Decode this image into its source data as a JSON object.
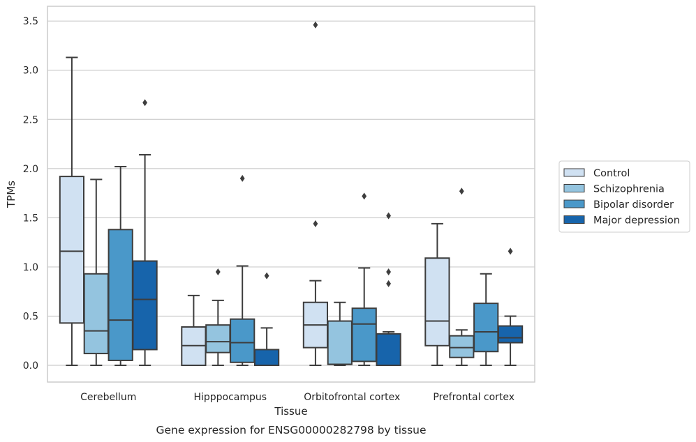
{
  "chart_data": {
    "type": "box",
    "caption": "Gene expression for ENSG00000282798 by tissue",
    "xlabel": "Tissue",
    "ylabel": "TPMs",
    "ylim": [
      -0.17,
      3.65
    ],
    "yticks": [
      "0.0",
      "0.5",
      "1.0",
      "1.5",
      "2.0",
      "2.5",
      "3.0",
      "3.5"
    ],
    "grid": true,
    "legend_position": "right",
    "categories": [
      "Cerebellum",
      "Hipppocampus",
      "Orbitofrontal cortex",
      "Prefrontal cortex"
    ],
    "series": [
      {
        "name": "Control",
        "color": "#d0e1f2",
        "boxes": [
          {
            "whisker_low": 0.0,
            "q1": 0.43,
            "median": 1.16,
            "q3": 1.92,
            "whisker_high": 3.13,
            "outliers": []
          },
          {
            "whisker_low": 0.0,
            "q1": 0.0,
            "median": 0.2,
            "q3": 0.39,
            "whisker_high": 0.71,
            "outliers": []
          },
          {
            "whisker_low": 0.0,
            "q1": 0.18,
            "median": 0.41,
            "q3": 0.64,
            "whisker_high": 0.86,
            "outliers": [
              1.44,
              3.46
            ]
          },
          {
            "whisker_low": 0.0,
            "q1": 0.2,
            "median": 0.45,
            "q3": 1.09,
            "whisker_high": 1.44,
            "outliers": []
          }
        ]
      },
      {
        "name": "Schizophrenia",
        "color": "#94c4df",
        "boxes": [
          {
            "whisker_low": 0.0,
            "q1": 0.12,
            "median": 0.35,
            "q3": 0.93,
            "whisker_high": 1.89,
            "outliers": []
          },
          {
            "whisker_low": 0.0,
            "q1": 0.13,
            "median": 0.24,
            "q3": 0.41,
            "whisker_high": 0.66,
            "outliers": [
              0.95
            ]
          },
          {
            "whisker_low": 0.0,
            "q1": 0.01,
            "median": 0.01,
            "q3": 0.45,
            "whisker_high": 0.64,
            "outliers": []
          },
          {
            "whisker_low": 0.0,
            "q1": 0.08,
            "median": 0.18,
            "q3": 0.3,
            "whisker_high": 0.36,
            "outliers": [
              1.77
            ]
          }
        ]
      },
      {
        "name": "Bipolar disorder",
        "color": "#4a98c9",
        "boxes": [
          {
            "whisker_low": 0.0,
            "q1": 0.05,
            "median": 0.46,
            "q3": 1.38,
            "whisker_high": 2.02,
            "outliers": []
          },
          {
            "whisker_low": 0.0,
            "q1": 0.03,
            "median": 0.23,
            "q3": 0.47,
            "whisker_high": 1.01,
            "outliers": [
              1.9
            ]
          },
          {
            "whisker_low": 0.0,
            "q1": 0.04,
            "median": 0.42,
            "q3": 0.58,
            "whisker_high": 0.99,
            "outliers": [
              1.72
            ]
          },
          {
            "whisker_low": 0.0,
            "q1": 0.14,
            "median": 0.34,
            "q3": 0.63,
            "whisker_high": 0.93,
            "outliers": []
          }
        ]
      },
      {
        "name": "Major depression",
        "color": "#1764ab",
        "boxes": [
          {
            "whisker_low": 0.0,
            "q1": 0.16,
            "median": 0.67,
            "q3": 1.06,
            "whisker_high": 2.14,
            "outliers": [
              2.67
            ]
          },
          {
            "whisker_low": 0.0,
            "q1": 0.0,
            "median": 0.0,
            "q3": 0.16,
            "whisker_high": 0.38,
            "outliers": [
              0.91
            ]
          },
          {
            "whisker_low": 0.0,
            "q1": 0.0,
            "median": 0.0,
            "q3": 0.32,
            "whisker_high": 0.34,
            "outliers": [
              0.83,
              0.95,
              1.52
            ]
          },
          {
            "whisker_low": 0.0,
            "q1": 0.23,
            "median": 0.28,
            "q3": 0.4,
            "whisker_high": 0.5,
            "outliers": [
              1.16
            ]
          }
        ]
      }
    ]
  }
}
